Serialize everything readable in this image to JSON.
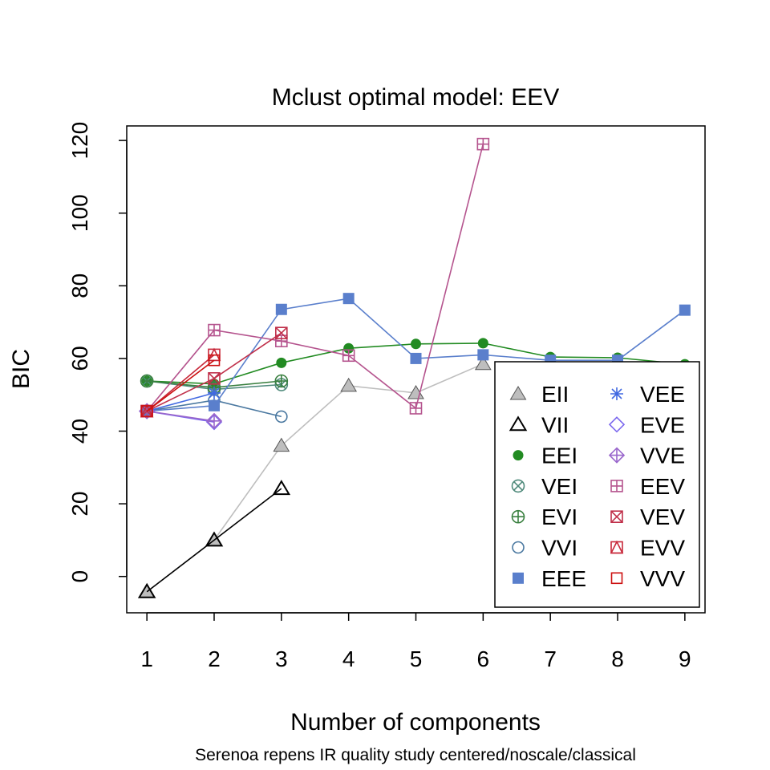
{
  "chart_data": {
    "type": "line",
    "title": "Mclust optimal model: EEV",
    "subtitle": "Serenoa repens IR quality study  centered/noscale/classical",
    "xlabel": "Number of components",
    "ylabel": "BIC",
    "x_ticks": [
      "1",
      "2",
      "3",
      "4",
      "5",
      "6",
      "7",
      "8",
      "9"
    ],
    "y_ticks": [
      "0",
      "20",
      "40",
      "60",
      "80",
      "100",
      "120"
    ],
    "xlim": [
      0.7,
      9.3
    ],
    "ylim": [
      -10,
      124
    ],
    "grid": false,
    "legend_position": "bottom-right",
    "legend_columns": 2,
    "series": [
      {
        "name": "EII",
        "color": "#bebebe",
        "marker": "triangle-filled",
        "points": [
          [
            1,
            -4.2
          ],
          [
            2,
            10
          ],
          [
            3,
            36
          ],
          [
            4,
            52.5
          ],
          [
            5,
            50.5
          ],
          [
            6,
            58.5
          ]
        ]
      },
      {
        "name": "VII",
        "color": "#000000",
        "marker": "triangle-open",
        "points": [
          [
            1,
            -4.2
          ],
          [
            2,
            10
          ],
          [
            3,
            24.2
          ]
        ]
      },
      {
        "name": "EEI",
        "color": "#228b22",
        "marker": "circle-filled",
        "points": [
          [
            1,
            53.8
          ],
          [
            2,
            53
          ],
          [
            3,
            58.8
          ],
          [
            4,
            62.8
          ],
          [
            5,
            64
          ],
          [
            6,
            64.2
          ],
          [
            7,
            60.4
          ],
          [
            8,
            60.2
          ],
          [
            9,
            58.4
          ]
        ]
      },
      {
        "name": "VEI",
        "color": "#4f8a7b",
        "marker": "circle-x",
        "points": [
          [
            1,
            53.8
          ],
          [
            2,
            51.5
          ],
          [
            3,
            52.8
          ]
        ]
      },
      {
        "name": "EVI",
        "color": "#3a8040",
        "marker": "circle-plus",
        "points": [
          [
            1,
            53.8
          ],
          [
            2,
            52
          ],
          [
            3,
            53.8
          ]
        ]
      },
      {
        "name": "VVI",
        "color": "#4a78a0",
        "marker": "circle-open",
        "points": [
          [
            1,
            45.5
          ],
          [
            2,
            48.5
          ],
          [
            3,
            44
          ]
        ]
      },
      {
        "name": "EEE",
        "color": "#5a7fcc",
        "marker": "square-filled",
        "points": [
          [
            1,
            45.5
          ],
          [
            2,
            47
          ],
          [
            3,
            73.5
          ],
          [
            4,
            76.5
          ],
          [
            5,
            60
          ],
          [
            6,
            61
          ],
          [
            7,
            59.5
          ],
          [
            8,
            59.5
          ],
          [
            9,
            73.3
          ]
        ]
      },
      {
        "name": "VEE",
        "color": "#4169e1",
        "marker": "asterisk",
        "points": [
          [
            1,
            45.5
          ],
          [
            2,
            50.5
          ]
        ]
      },
      {
        "name": "EVE",
        "color": "#7b68ee",
        "marker": "diamond-open",
        "points": [
          [
            1,
            45.5
          ],
          [
            2,
            42.5
          ]
        ]
      },
      {
        "name": "VVE",
        "color": "#9966cc",
        "marker": "diamond-plus",
        "points": [
          [
            1,
            45.5
          ],
          [
            2,
            42.8
          ]
        ]
      },
      {
        "name": "EEV",
        "color": "#b5548e",
        "marker": "square-plus",
        "points": [
          [
            1,
            45.5
          ],
          [
            2,
            67.8
          ],
          [
            3,
            64.8
          ],
          [
            4,
            60.8
          ],
          [
            5,
            46.3
          ],
          [
            6,
            119
          ]
        ]
      },
      {
        "name": "VEV",
        "color": "#c0304a",
        "marker": "square-x",
        "points": [
          [
            1,
            45.5
          ],
          [
            2,
            54.5
          ],
          [
            3,
            67
          ]
        ]
      },
      {
        "name": "EVV",
        "color": "#c8283a",
        "marker": "square-triangle",
        "points": [
          [
            1,
            45.5
          ],
          [
            2,
            61
          ]
        ]
      },
      {
        "name": "VVV",
        "color": "#cc1010",
        "marker": "square-open",
        "points": [
          [
            1,
            45.5
          ],
          [
            2,
            59.5
          ]
        ]
      }
    ]
  }
}
